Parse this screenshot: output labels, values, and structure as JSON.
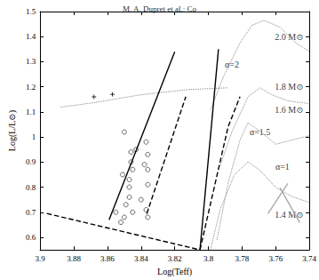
{
  "chart_data": {
    "type": "line",
    "title": "M. A. Dupret et al.: Co",
    "x_label": "Log(Teff)",
    "y_label": "Log(L/L⊙)",
    "xlim": [
      3.9,
      3.74
    ],
    "xticks": [
      3.9,
      3.88,
      3.86,
      3.84,
      3.82,
      3.8,
      3.78,
      3.76,
      3.74
    ],
    "ylim": [
      0.55,
      1.5
    ],
    "yticks": [
      0.6,
      0.7,
      0.8,
      0.9,
      1,
      1.1,
      1.2,
      1.3,
      1.4,
      1.5
    ],
    "grid": false,
    "series": [
      {
        "type": "line",
        "line_style": "dotted",
        "color": "#888888",
        "x": [
          3.7987,
          3.793,
          3.7845,
          3.7764,
          3.7693,
          3.7599,
          3.7504,
          3.74
        ],
        "values": [
          0.552,
          0.711,
          0.85,
          0.901,
          0.867,
          0.798,
          0.763,
          0.739
        ]
      },
      {
        "type": "line",
        "line_style": "dotted",
        "color": "#888888",
        "x": [
          3.7949,
          3.7883,
          3.7812,
          3.7764,
          3.7693,
          3.7599,
          3.7504,
          3.74
        ],
        "values": [
          0.59,
          0.815,
          0.988,
          1.057,
          1.023,
          0.971,
          0.988,
          1.005
        ]
      },
      {
        "type": "line",
        "line_style": "dotted",
        "color": "#888888",
        "x": [
          3.793,
          3.7859,
          3.7764,
          3.7693,
          3.7622,
          3.7528,
          3.74
        ],
        "values": [
          0.884,
          1.023,
          1.161,
          1.196,
          1.168,
          1.144,
          1.133
        ]
      },
      {
        "type": "line",
        "line_style": "dotted",
        "color": "#888888",
        "x": [
          3.8877,
          3.8678,
          3.8404,
          3.812,
          3.7883
        ],
        "values": [
          1.119,
          1.137,
          1.168,
          1.189,
          1.196
        ]
      },
      {
        "type": "line",
        "line_style": "dotted",
        "color": "#888888",
        "x": [
          3.7987,
          3.7906,
          3.7812,
          3.7741,
          3.767,
          3.7575,
          3.748,
          3.74
        ],
        "values": [
          1.109,
          1.247,
          1.375,
          1.445,
          1.465,
          1.438,
          1.375,
          1.341
        ]
      },
      {
        "type": "line",
        "line_style": "dashed",
        "color": "#000000",
        "x": [
          3.896,
          3.805
        ],
        "values": [
          0.695,
          0.55
        ]
      },
      {
        "type": "line",
        "line_style": "solid",
        "color": "#000000",
        "x": [
          3.859,
          3.82
        ],
        "values": [
          0.67,
          1.34
        ]
      },
      {
        "type": "line",
        "line_style": "solid",
        "color": "#000000",
        "x": [
          3.805,
          3.794
        ],
        "values": [
          0.55,
          1.35
        ]
      },
      {
        "type": "line",
        "line_style": "dashed",
        "color": "#000000",
        "x": [
          3.8366,
          3.8134
        ],
        "values": [
          0.694,
          1.161
        ]
      },
      {
        "type": "line",
        "line_style": "dashed",
        "color": "#000000",
        "x": [
          3.805,
          3.7883,
          3.7812
        ],
        "values": [
          0.55,
          1.04,
          1.161
        ]
      },
      {
        "type": "line",
        "line_style": "solid",
        "color": "#aaaaaa",
        "x": [
          3.7646,
          3.7528
        ],
        "values": [
          0.694,
          0.815
        ]
      },
      {
        "type": "line",
        "line_style": "solid",
        "color": "#aaaaaa",
        "x": [
          3.7575,
          3.7457
        ],
        "values": [
          0.798,
          0.659
        ]
      },
      {
        "type": "scatter",
        "marker": "circle",
        "color": "#444444",
        "x": [
          3.85,
          3.837,
          3.846,
          3.836,
          3.838,
          3.845,
          3.836,
          3.851,
          3.847,
          3.847,
          3.847,
          3.849,
          3.855,
          3.85,
          3.852,
          3.837,
          3.843,
          3.84,
          3.845,
          3.836,
          3.846,
          3.836
        ],
        "values": [
          1.02,
          0.98,
          0.94,
          0.93,
          0.89,
          0.87,
          0.87,
          0.85,
          0.83,
          0.8,
          0.76,
          0.73,
          0.7,
          0.68,
          0.66,
          0.71,
          0.95,
          0.75,
          0.7,
          0.81,
          0.9,
          0.68
        ]
      },
      {
        "type": "scatter",
        "marker": "cross",
        "color": "#000000",
        "x": [
          3.868,
          3.857
        ],
        "values": [
          1.16,
          1.17
        ]
      }
    ],
    "annotations": [
      {
        "text": "2.0 M⊙",
        "x": 3.752,
        "y": 1.4
      },
      {
        "text": "1.8 M⊙",
        "x": 3.752,
        "y": 1.2
      },
      {
        "text": "1.6 M⊙",
        "x": 3.752,
        "y": 1.11
      },
      {
        "text": "1.4 M⊙",
        "x": 3.752,
        "y": 0.69
      },
      {
        "text": "α=2",
        "x": 3.786,
        "y": 1.29
      },
      {
        "text": "α=1.5",
        "x": 3.7693,
        "y": 1.02
      },
      {
        "text": "α=1",
        "x": 3.756,
        "y": 0.88
      }
    ]
  }
}
